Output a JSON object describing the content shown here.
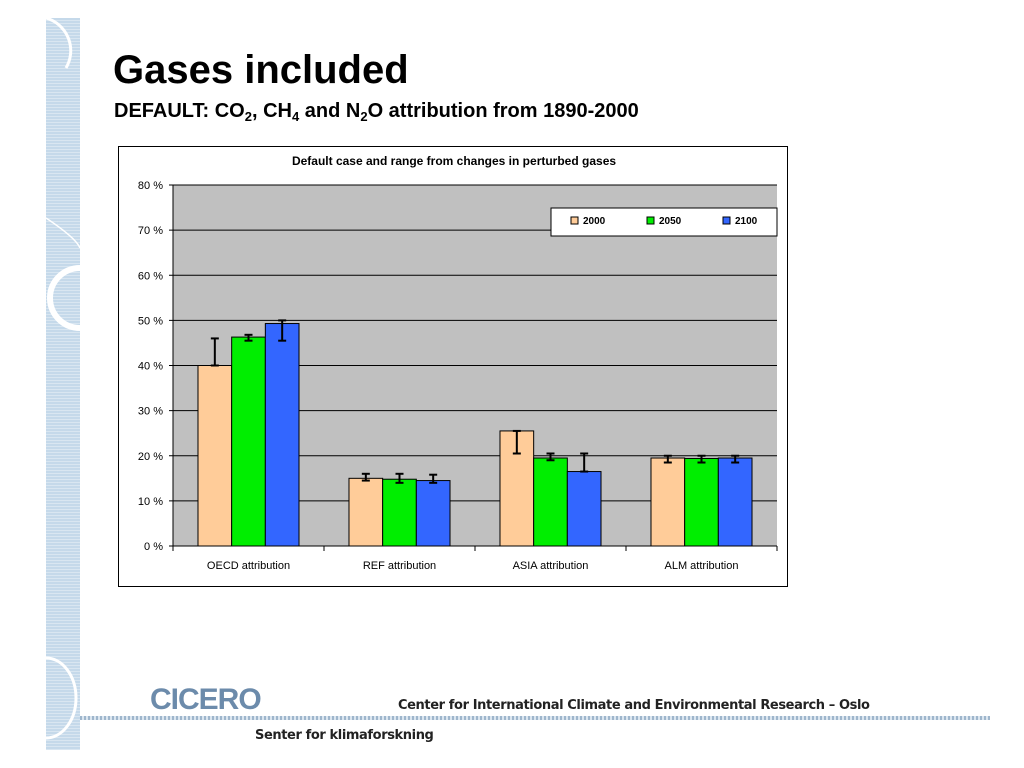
{
  "slide": {
    "title": "Gases included",
    "subtitle": {
      "prefix": "DEFAULT: CO",
      "sub1": "2",
      "mid1": ", CH",
      "sub2": "4",
      "mid2": " and N",
      "sub3": "2",
      "suffix": "O attribution from 1890-2000"
    }
  },
  "footer": {
    "logo_text": "CICERO",
    "org_name": "Center for International Climate and Environmental Research – Oslo",
    "sub_text": "Senter for klimaforskning"
  },
  "colors": {
    "plot_bg": "#c0c0c0",
    "s2000": "#ffcc99",
    "s2050": "#00ee00",
    "s2100": "#3366ff"
  },
  "chart_data": {
    "type": "bar",
    "title": "Default case and range from changes in perturbed gases",
    "xlabel": "",
    "ylabel": "",
    "ylim": [
      0,
      80
    ],
    "yticks": [
      0,
      10,
      20,
      30,
      40,
      50,
      60,
      70,
      80
    ],
    "ytick_labels": [
      "0 %",
      "10 %",
      "20 %",
      "30 %",
      "40 %",
      "50 %",
      "60 %",
      "70 %",
      "80 %"
    ],
    "grid": true,
    "legend_position": "top-right",
    "categories": [
      "OECD attribution",
      "REF attribution",
      "ASIA attribution",
      "ALM attribution"
    ],
    "series": [
      {
        "name": "2000",
        "color": "#ffcc99",
        "values": [
          40,
          15,
          25.5,
          19.5
        ],
        "err_low": [
          40,
          14.5,
          20.5,
          18.5
        ],
        "err_high": [
          46,
          16,
          25.5,
          20
        ]
      },
      {
        "name": "2050",
        "color": "#00ee00",
        "values": [
          46.3,
          14.8,
          19.5,
          19.4
        ],
        "err_low": [
          45.5,
          14,
          19,
          18.5
        ],
        "err_high": [
          46.8,
          16,
          20.5,
          20
        ]
      },
      {
        "name": "2100",
        "color": "#3366ff",
        "values": [
          49.3,
          14.5,
          16.5,
          19.5
        ],
        "err_low": [
          45.5,
          14,
          16.5,
          18.5
        ],
        "err_high": [
          50,
          15.8,
          20.5,
          20
        ]
      }
    ]
  }
}
